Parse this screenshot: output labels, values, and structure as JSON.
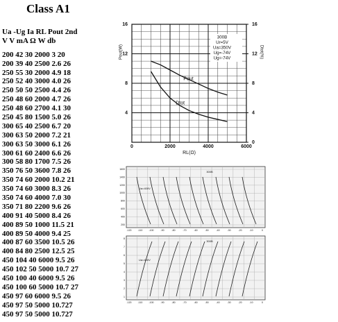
{
  "title": "Class A1",
  "table": {
    "header": [
      "Ua -Ug Ia RL Pout 2nd",
      "V V mA Ω W db"
    ],
    "rows": [
      "200 42 30 2000 3 20",
      "200 39 40 2500 2.6 26",
      "250 55 30 2000 4.9 18",
      "250 52 40 3000 4.0 26",
      "250 50 50 2500 4.4 26",
      "250 48 60 2000 4.7 26",
      "250 48 60 2700 4.1 30",
      "250 45 80 1500 5.0 26",
      "300 65 40 2500 6.7 20",
      "300 63 50 2000 7.2 21",
      "300 63 50 3000 6.1 26",
      "300 61 60 2400 6.6 26",
      "300 58 80 1700 7.5 26",
      "350 76 50 3600 7.8 26",
      "350 74 60 2000 10.2 21",
      "350 74 60 3000 8.3 26",
      "350 74 60 4000 7.0 30",
      "350 71 80 2200 9.6 26",
      "400 91 40 5000 8.4 26",
      "400 89 50 1000 11.5 21",
      "400 89 50 4000 9.4 25",
      "400 87 60 3500 10.5 26",
      "400 84 80 2500 12.5 25",
      "450 104 40 6000 9.5 26",
      "450 102 50 5000 10.7 27",
      "450 100 40 6000 9.5 26",
      "450 100 60 5000 10.7 27",
      "450 97 60 6000 9.5 26",
      "450 97 50 5000 10.727",
      "450 97 50 5000 10.727"
    ]
  },
  "chart_data": {
    "type": "line",
    "legend_box": [
      "300B",
      "Ur=5V",
      "Ua=350V",
      "Ug=-74V",
      "Ug=-74V"
    ],
    "xlabel": "RL(Ω)",
    "ylabel": "Pout(W)",
    "y2label": "Dtot(%)",
    "x": [
      1000,
      1500,
      2000,
      2500,
      3000,
      3500,
      4000,
      4500,
      5000
    ],
    "series": [
      {
        "name": "Pout",
        "color": "#111",
        "values": [
          11,
          10.5,
          9.8,
          9.1,
          8.5,
          7.9,
          7.3,
          6.8,
          6.4
        ]
      },
      {
        "name": "Dtot",
        "color": "#111",
        "axis": "y2",
        "values": [
          9.6,
          7.5,
          6,
          5,
          4.3,
          3.8,
          3.4,
          3.1,
          2.8
        ]
      }
    ],
    "xlim": [
      0,
      6000
    ],
    "xticks": [
      0,
      2000,
      4000,
      6000
    ],
    "ylim": [
      0,
      16
    ],
    "yticks": [
      4,
      8,
      12,
      16
    ],
    "y2lim": [
      0,
      16
    ],
    "y2ticks": [
      0,
      4,
      8,
      12,
      16
    ]
  },
  "plate_charts": [
    {
      "label": "300B",
      "curve_label": "Ua=400V",
      "yticks": [
        "1600",
        "1400",
        "1200",
        "1000",
        "800",
        "600",
        "400",
        "200"
      ],
      "xticks": [
        "-120",
        "-110",
        "-100",
        "-90",
        "-80",
        "-70",
        "-60",
        "-50",
        "-40",
        "-30",
        "-20",
        "-10",
        "0"
      ]
    },
    {
      "label": "300B",
      "curve_label": "Ua=400V",
      "yticks": [
        "8",
        "7",
        "6",
        "5",
        "4",
        "3",
        "2",
        "1"
      ],
      "xticks": [
        "-120",
        "-110",
        "-100",
        "-90",
        "-80",
        "-70",
        "-60",
        "-50",
        "-40",
        "-30",
        "-20",
        "-10",
        "0"
      ]
    }
  ]
}
